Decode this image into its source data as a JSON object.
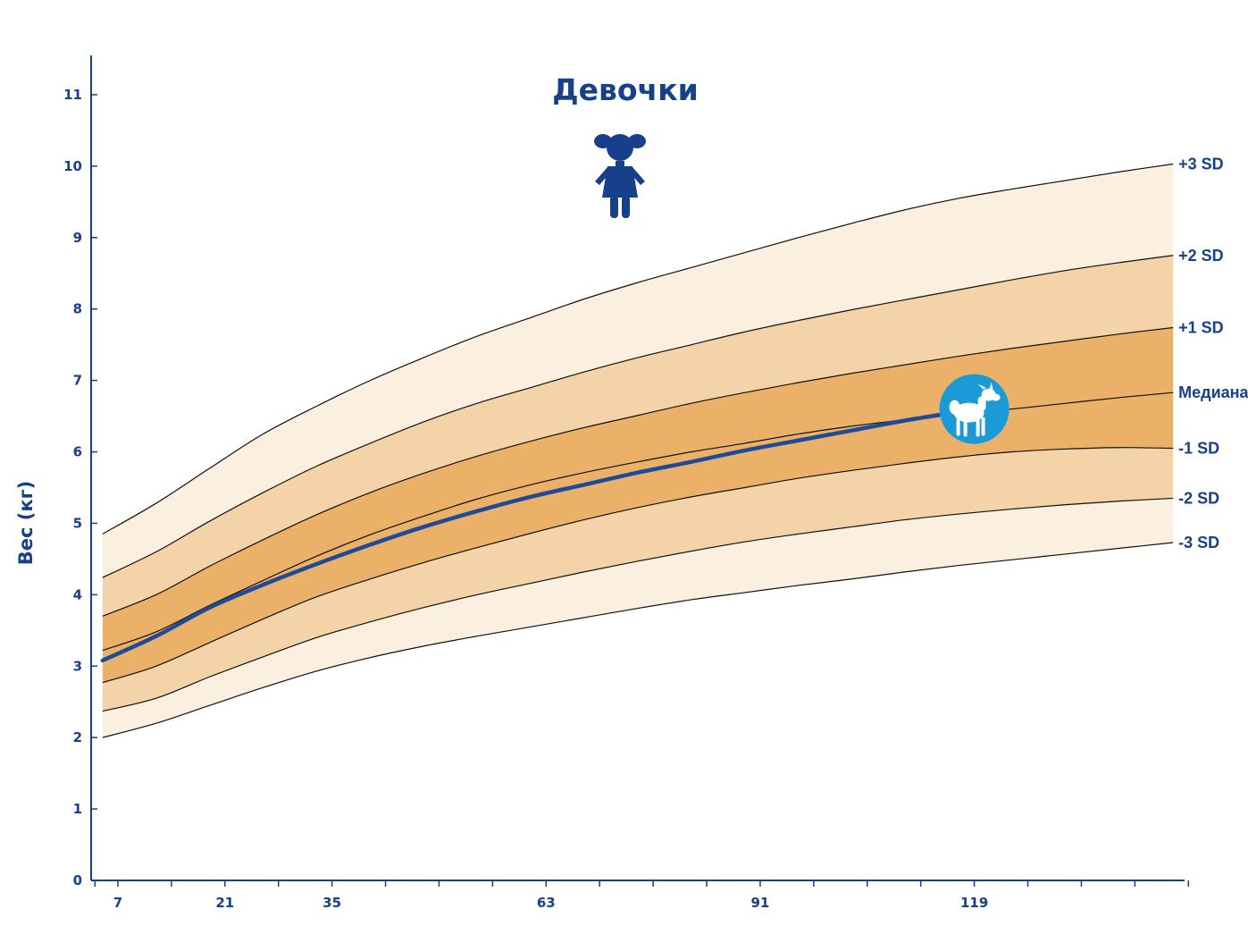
{
  "chart_data": {
    "type": "area",
    "title": "Девочки",
    "ylabel": "Вес (кг)",
    "xlabel": "",
    "xlim": [
      3.5,
      146.5
    ],
    "ylim": [
      0,
      11.55
    ],
    "x_ticks": [
      7,
      21,
      35,
      63,
      91,
      119
    ],
    "x_minor_ticks": [
      4,
      14,
      28,
      42,
      49,
      56,
      70,
      77,
      84,
      98,
      105,
      112,
      126,
      133,
      140,
      147
    ],
    "y_ticks": [
      0,
      1,
      2,
      3,
      4,
      5,
      6,
      7,
      8,
      9,
      10,
      11
    ],
    "x": [
      5,
      12,
      19,
      26,
      33,
      40,
      47,
      54,
      61,
      68,
      75,
      82,
      89,
      96,
      103,
      110,
      117,
      124,
      131,
      138,
      145
    ],
    "series": [
      {
        "name": "-3 SD",
        "values": [
          2.0,
          2.2,
          2.45,
          2.7,
          2.93,
          3.12,
          3.28,
          3.42,
          3.55,
          3.68,
          3.81,
          3.93,
          4.03,
          4.13,
          4.22,
          4.32,
          4.41,
          4.49,
          4.57,
          4.65,
          4.73
        ]
      },
      {
        "name": "-2 SD",
        "values": [
          2.37,
          2.55,
          2.85,
          3.13,
          3.4,
          3.62,
          3.82,
          4.0,
          4.16,
          4.32,
          4.47,
          4.61,
          4.74,
          4.85,
          4.95,
          5.05,
          5.13,
          5.2,
          5.26,
          5.31,
          5.35
        ]
      },
      {
        "name": "-1 SD",
        "values": [
          2.77,
          3.0,
          3.33,
          3.66,
          3.97,
          4.22,
          4.45,
          4.66,
          4.86,
          5.05,
          5.22,
          5.37,
          5.5,
          5.63,
          5.74,
          5.84,
          5.93,
          6.0,
          6.04,
          6.06,
          6.05
        ]
      },
      {
        "name": "Медиана",
        "values": [
          3.22,
          3.48,
          3.85,
          4.2,
          4.54,
          4.84,
          5.1,
          5.34,
          5.54,
          5.71,
          5.86,
          6.0,
          6.12,
          6.25,
          6.36,
          6.45,
          6.53,
          6.6,
          6.68,
          6.76,
          6.83
        ]
      },
      {
        "name": "+1 SD",
        "values": [
          3.7,
          4.0,
          4.4,
          4.77,
          5.12,
          5.43,
          5.7,
          5.94,
          6.15,
          6.34,
          6.51,
          6.68,
          6.83,
          6.97,
          7.1,
          7.22,
          7.34,
          7.45,
          7.55,
          7.65,
          7.74
        ]
      },
      {
        "name": "+2 SD",
        "values": [
          4.24,
          4.6,
          5.03,
          5.43,
          5.8,
          6.12,
          6.42,
          6.68,
          6.9,
          7.12,
          7.32,
          7.5,
          7.68,
          7.84,
          7.99,
          8.13,
          8.27,
          8.41,
          8.54,
          8.65,
          8.75
        ]
      },
      {
        "name": "+3 SD",
        "values": [
          4.85,
          5.28,
          5.77,
          6.25,
          6.64,
          7.0,
          7.32,
          7.62,
          7.88,
          8.14,
          8.37,
          8.58,
          8.79,
          9.0,
          9.2,
          9.39,
          9.55,
          9.68,
          9.8,
          9.92,
          10.03
        ]
      }
    ],
    "child_curve": {
      "x": [
        5,
        12,
        19,
        26,
        33,
        40,
        47,
        54,
        61,
        68,
        75,
        82,
        89,
        96,
        103,
        110,
        117
      ],
      "values": [
        3.08,
        3.42,
        3.82,
        4.14,
        4.43,
        4.7,
        4.95,
        5.17,
        5.37,
        5.54,
        5.71,
        5.86,
        6.02,
        6.16,
        6.3,
        6.44,
        6.56
      ]
    },
    "marker": {
      "x": 119,
      "y": 6.6,
      "icon": "lamb-icon",
      "color": "#1a9bd7"
    },
    "band_colors": [
      "#fbefdf",
      "#f4d3a9",
      "#ecb168",
      "#ecb168",
      "#f4d3a9",
      "#fbefdf"
    ],
    "line_color": "#1e4a9a",
    "axis_color": "#17408b",
    "figure_icon": "girl-icon"
  }
}
